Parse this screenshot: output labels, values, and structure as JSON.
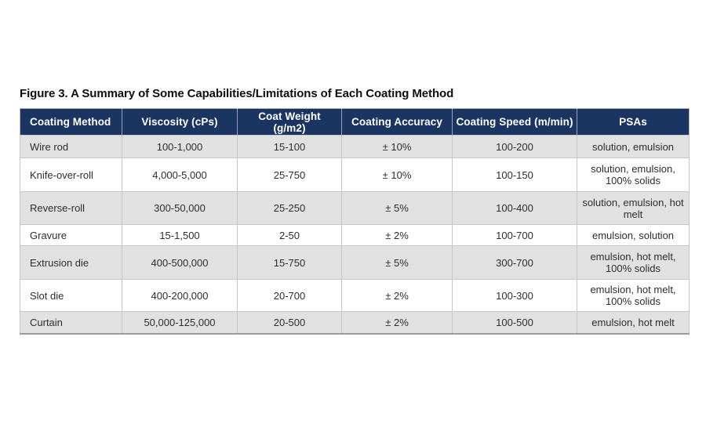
{
  "figure": {
    "title": "Figure 3. A Summary of Some Capabilities/Limitations of Each Coating Method"
  },
  "chart_data": {
    "type": "table",
    "title": "Figure 3. A Summary of Some Capabilities/Limitations of Each Coating Method",
    "columns": [
      "Coating Method",
      "Viscosity (cPs)",
      "Coat Weight (g/m2)",
      "Coating Accuracy",
      "Coating Speed (m/min)",
      "PSAs"
    ],
    "rows": [
      [
        "Wire rod",
        "100-1,000",
        "15-100",
        "± 10%",
        "100-200",
        "solution, emulsion"
      ],
      [
        "Knife-over-roll",
        "4,000-5,000",
        "25-750",
        "± 10%",
        "100-150",
        "solution, emulsion, 100% solids"
      ],
      [
        "Reverse-roll",
        "300-50,000",
        "25-250",
        "± 5%",
        "100-400",
        "solution, emulsion, hot melt"
      ],
      [
        "Gravure",
        "15-1,500",
        "2-50",
        "± 2%",
        "100-700",
        "emulsion, solution"
      ],
      [
        "Extrusion die",
        "400-500,000",
        "15-750",
        "± 5%",
        "300-700",
        "emulsion, hot melt, 100% solids"
      ],
      [
        "Slot die",
        "400-200,000",
        "20-700",
        "± 2%",
        "100-300",
        "emulsion, hot melt, 100% solids"
      ],
      [
        "Curtain",
        "50,000-125,000",
        "20-500",
        "± 2%",
        "100-500",
        "emulsion, hot melt"
      ]
    ],
    "layout": {
      "header_row": true,
      "zebra_striping": "odd rows shaded gray",
      "first_column_align": "left",
      "other_columns_align": "center"
    }
  },
  "colors": {
    "header_bg": "#1a3561",
    "header_text": "#ffffff",
    "row_alt_bg": "#e1e1e1",
    "row_bg": "#ffffff",
    "body_text": "#2e2e2e",
    "table_border": "#aeaeae"
  }
}
